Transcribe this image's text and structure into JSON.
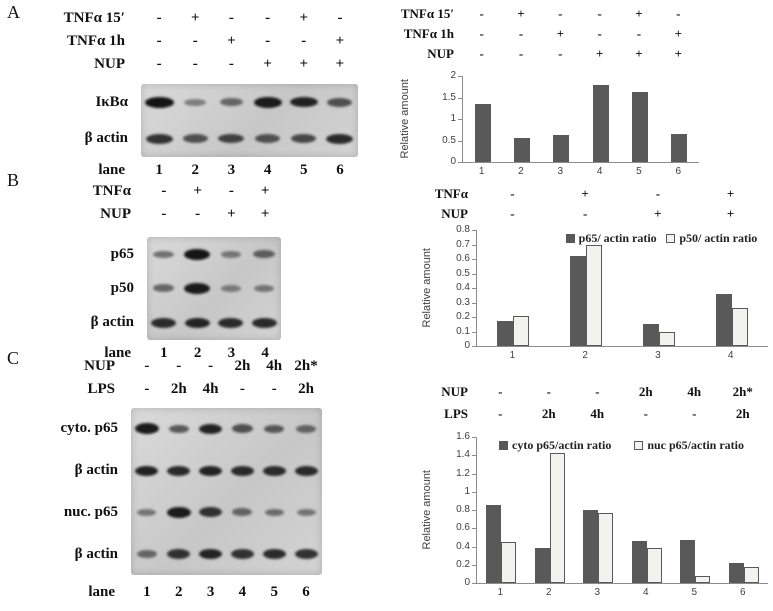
{
  "figure": {
    "panel_a_letter": "A",
    "panel_b_letter": "B",
    "panel_c_letter": "C"
  },
  "panels": {
    "A": {
      "treatments": [
        {
          "name": "TNFα 15′",
          "values": [
            "-",
            "+",
            "-",
            "-",
            "+",
            "-"
          ]
        },
        {
          "name": "TNFα 1h",
          "values": [
            "-",
            "-",
            "+",
            "-",
            "-",
            "+"
          ]
        },
        {
          "name": "NUP",
          "values": [
            "-",
            "-",
            "-",
            "+",
            "+",
            "+"
          ]
        }
      ],
      "blot_rows": [
        {
          "label": "IκBα",
          "intensities": [
            1.0,
            0.3,
            0.45,
            0.95,
            0.9,
            0.6
          ]
        },
        {
          "label": "β actin",
          "intensities": [
            0.8,
            0.6,
            0.7,
            0.6,
            0.65,
            0.85
          ]
        }
      ],
      "lane_label": "lane",
      "lanes": [
        "1",
        "2",
        "3",
        "4",
        "5",
        "6"
      ]
    },
    "B": {
      "treatments": [
        {
          "name": "TNFα",
          "values": [
            "-",
            "+",
            "-",
            "+"
          ]
        },
        {
          "name": "NUP",
          "values": [
            "-",
            "-",
            "+",
            "+"
          ]
        }
      ],
      "blot_rows": [
        {
          "label": "p65",
          "intensities": [
            0.4,
            1.0,
            0.35,
            0.5
          ]
        },
        {
          "label": "p50",
          "intensities": [
            0.45,
            0.95,
            0.3,
            0.35
          ]
        },
        {
          "label": "β actin",
          "intensities": [
            0.85,
            0.9,
            0.85,
            0.85
          ]
        }
      ],
      "lane_label": "lane",
      "lanes": [
        "1",
        "2",
        "3",
        "4"
      ]
    },
    "C": {
      "treatments": [
        {
          "name": "NUP",
          "values": [
            "-",
            "-",
            "-",
            "2h",
            "4h",
            "2h*"
          ]
        },
        {
          "name": "LPS",
          "values": [
            "-",
            "2h",
            "4h",
            "-",
            "-",
            "2h"
          ]
        }
      ],
      "blot_rows": [
        {
          "label": "cyto. p65",
          "intensities": [
            0.95,
            0.55,
            0.9,
            0.6,
            0.55,
            0.45
          ]
        },
        {
          "label": "β actin",
          "intensities": [
            0.9,
            0.85,
            0.9,
            0.85,
            0.85,
            0.85
          ]
        },
        {
          "label": "nuc. p65",
          "intensities": [
            0.35,
            0.95,
            0.8,
            0.45,
            0.4,
            0.35
          ]
        },
        {
          "label": "β actin",
          "intensities": [
            0.45,
            0.8,
            0.9,
            0.8,
            0.85,
            0.8
          ]
        }
      ],
      "lane_label": "lane",
      "lanes": [
        "1",
        "2",
        "3",
        "4",
        "5",
        "6"
      ]
    }
  },
  "chart_data": [
    {
      "id": "A",
      "type": "bar",
      "title": "",
      "categories": [
        "1",
        "2",
        "3",
        "4",
        "5",
        "6"
      ],
      "values": [
        1.35,
        0.57,
        0.62,
        1.8,
        1.62,
        0.65
      ],
      "bar_color": "#595959",
      "xlabel": "",
      "ylabel": "Relative amount",
      "ylim": [
        0,
        2
      ],
      "yticks": [
        [
          0,
          "0"
        ],
        [
          0.5,
          "0.5"
        ],
        [
          1,
          "1"
        ],
        [
          1.5,
          "1.5"
        ],
        [
          2,
          "2"
        ]
      ],
      "grid": false,
      "header_rows": [
        {
          "name": "TNFα 15′",
          "values": [
            "-",
            "+",
            "-",
            "-",
            "+",
            "-"
          ]
        },
        {
          "name": "TNFα 1h",
          "values": [
            "-",
            "-",
            "+",
            "-",
            "-",
            "+"
          ]
        },
        {
          "name": "NUP",
          "values": [
            "-",
            "-",
            "-",
            "+",
            "+",
            "+"
          ]
        }
      ]
    },
    {
      "id": "B",
      "type": "bar",
      "title": "",
      "categories": [
        "1",
        "2",
        "3",
        "4"
      ],
      "series": [
        {
          "name": "p65/ actin ratio",
          "color": "#595959",
          "values": [
            0.17,
            0.62,
            0.15,
            0.36
          ]
        },
        {
          "name": "p50/ actin ratio",
          "color": "#f2f2ef",
          "values": [
            0.21,
            0.7,
            0.1,
            0.26
          ]
        }
      ],
      "xlabel": "",
      "ylabel": "Relative amount",
      "ylim": [
        0,
        0.8
      ],
      "yticks": [
        [
          0,
          "0"
        ],
        [
          0.1,
          "0.1"
        ],
        [
          0.2,
          "0.2"
        ],
        [
          0.3,
          "0.3"
        ],
        [
          0.4,
          "0.4"
        ],
        [
          0.5,
          "0.5"
        ],
        [
          0.6,
          "0.6"
        ],
        [
          0.7,
          "0.7"
        ],
        [
          0.8,
          "0.8"
        ]
      ],
      "grid": false,
      "legend_position": "top-right",
      "header_rows": [
        {
          "name": "TNFα",
          "values": [
            "-",
            "+",
            "-",
            "+"
          ]
        },
        {
          "name": "NUP",
          "values": [
            "-",
            "-",
            "+",
            "+"
          ]
        }
      ]
    },
    {
      "id": "C",
      "type": "bar",
      "title": "",
      "categories": [
        "1",
        "2",
        "3",
        "4",
        "5",
        "6"
      ],
      "series": [
        {
          "name": "cyto p65/actin ratio",
          "color": "#595959",
          "values": [
            0.85,
            0.38,
            0.8,
            0.46,
            0.47,
            0.22
          ]
        },
        {
          "name": "nuc p65/actin ratio",
          "color": "#f2f2ef",
          "values": [
            0.45,
            1.43,
            0.77,
            0.38,
            0.08,
            0.18
          ]
        }
      ],
      "xlabel": "",
      "ylabel": "Relative amount",
      "ylim": [
        0,
        1.6
      ],
      "yticks": [
        [
          0,
          "0"
        ],
        [
          0.2,
          "0.2"
        ],
        [
          0.4,
          "0.4"
        ],
        [
          0.6,
          "0.6"
        ],
        [
          0.8,
          "0.8"
        ],
        [
          1,
          "1"
        ],
        [
          1.2,
          "1.2"
        ],
        [
          1.4,
          "1.4"
        ],
        [
          1.6,
          "1.6"
        ]
      ],
      "grid": false,
      "legend_position": "top",
      "header_rows": [
        {
          "name": "NUP",
          "values": [
            "-",
            "-",
            "-",
            "2h",
            "4h",
            "2h*"
          ]
        },
        {
          "name": "LPS",
          "values": [
            "-",
            "2h",
            "4h",
            "-",
            "-",
            "2h"
          ]
        }
      ]
    }
  ]
}
